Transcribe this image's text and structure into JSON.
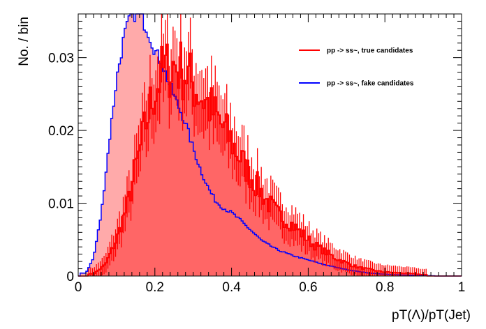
{
  "chart_data": {
    "type": "histogram",
    "title": "",
    "xlabel": "pT(Λ)/pT(Jet)",
    "ylabel": "No. / bin",
    "xlim": [
      0,
      1
    ],
    "ylim": [
      0,
      0.036
    ],
    "x_ticks": [
      {
        "value": 0,
        "label": "0"
      },
      {
        "value": 0.2,
        "label": "0.2"
      },
      {
        "value": 0.4,
        "label": "0.4"
      },
      {
        "value": 0.6,
        "label": "0.6"
      },
      {
        "value": 0.8,
        "label": "0.8"
      },
      {
        "value": 1,
        "label": "1"
      }
    ],
    "y_ticks": [
      {
        "value": 0,
        "label": "0"
      },
      {
        "value": 0.01,
        "label": "0.01"
      },
      {
        "value": 0.02,
        "label": "0.02"
      },
      {
        "value": 0.03,
        "label": "0.03"
      }
    ],
    "grid": false,
    "legend_position": "top-right",
    "bin_width": 0.005,
    "series": [
      {
        "name": "pp -> ss~, true candidates",
        "color": "#ff0000",
        "fill": "#ff6666",
        "x": [
          0.04,
          0.07,
          0.1,
          0.13,
          0.16,
          0.19,
          0.22,
          0.25,
          0.28,
          0.31,
          0.34,
          0.37,
          0.4,
          0.43,
          0.46,
          0.49,
          0.52,
          0.55,
          0.58,
          0.61,
          0.64,
          0.67,
          0.7,
          0.73,
          0.76,
          0.79,
          0.82,
          0.85,
          0.88,
          0.9
        ],
        "y": [
          0.0003,
          0.0015,
          0.005,
          0.01,
          0.017,
          0.024,
          0.028,
          0.029,
          0.028,
          0.0255,
          0.0235,
          0.021,
          0.0185,
          0.0155,
          0.013,
          0.0105,
          0.0085,
          0.0075,
          0.006,
          0.0045,
          0.0035,
          0.0025,
          0.0018,
          0.0012,
          0.0009,
          0.0006,
          0.0005,
          0.0004,
          0.0003,
          0.0002
        ]
      },
      {
        "name": "pp -> ss~, fake candidates",
        "color": "#0000ff",
        "fill": "#ffaaaa",
        "x": [
          0.02,
          0.04,
          0.06,
          0.08,
          0.1,
          0.12,
          0.14,
          0.16,
          0.18,
          0.2,
          0.22,
          0.24,
          0.26,
          0.28,
          0.3,
          0.32,
          0.34,
          0.36,
          0.38,
          0.4,
          0.42,
          0.44,
          0.46,
          0.48,
          0.5,
          0.52,
          0.56,
          0.6,
          0.64,
          0.68,
          0.72,
          0.76,
          0.8,
          0.84,
          0.88,
          0.92
        ],
        "y": [
          0.0004,
          0.0025,
          0.0085,
          0.018,
          0.027,
          0.033,
          0.036,
          0.036,
          0.034,
          0.031,
          0.029,
          0.026,
          0.0235,
          0.021,
          0.0175,
          0.0145,
          0.012,
          0.0102,
          0.0093,
          0.0087,
          0.0078,
          0.0068,
          0.0058,
          0.0048,
          0.0042,
          0.0036,
          0.0028,
          0.0022,
          0.0016,
          0.0011,
          0.0007,
          0.0004,
          0.00025,
          0.00015,
          0.0001,
          4e-05
        ]
      }
    ]
  }
}
